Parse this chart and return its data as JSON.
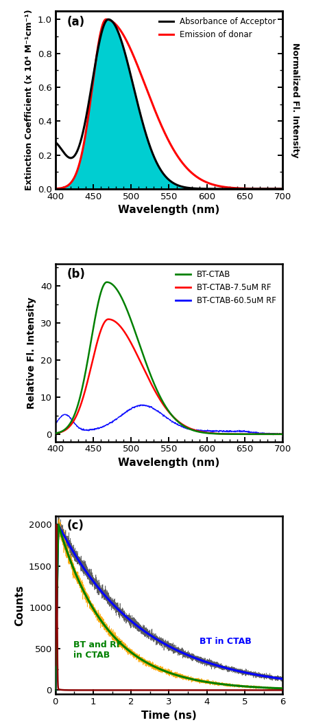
{
  "panel_a": {
    "label": "(a)",
    "xlim": [
      400,
      700
    ],
    "ylim": [
      0.0,
      1.05
    ],
    "xlabel": "Wavelength (nm)",
    "ylabel_left": "Extinction Coefficient (x 10⁴ M⁻¹cm⁻¹)",
    "ylabel_right": "Normalized Fl. Intensity",
    "xticks": [
      400,
      450,
      500,
      550,
      600,
      650,
      700
    ],
    "yticks": [
      0.0,
      0.2,
      0.4,
      0.6,
      0.8,
      1.0
    ],
    "legend": [
      "Absorbance of Acceptor",
      "Emission of donar"
    ],
    "fill_color": "#00CED1"
  },
  "panel_b": {
    "label": "(b)",
    "xlim": [
      400,
      700
    ],
    "ylim": [
      -2,
      46
    ],
    "xlabel": "Wavelength (nm)",
    "ylabel": "Relative Fl. Intensity",
    "xticks": [
      400,
      450,
      500,
      550,
      600,
      650,
      700
    ],
    "yticks": [
      0,
      10,
      20,
      30,
      40
    ],
    "legend": [
      "BT-CTAB",
      "BT-CTAB-7.5uM RF",
      "BT-CTAB-60.5uM RF"
    ]
  },
  "panel_c": {
    "label": "(c)",
    "xlim": [
      0,
      6
    ],
    "ylim": [
      -50,
      2100
    ],
    "xlabel": "Time (ns)",
    "ylabel": "Counts",
    "xticks": [
      0,
      1,
      2,
      3,
      4,
      5,
      6
    ],
    "yticks": [
      0,
      500,
      1000,
      1500,
      2000
    ],
    "ann1": "BT in CTAB",
    "ann1_x": 3.8,
    "ann1_y": 560,
    "ann2": "BT and RF\nin CTAB",
    "ann2_x": 0.48,
    "ann2_y": 390
  }
}
